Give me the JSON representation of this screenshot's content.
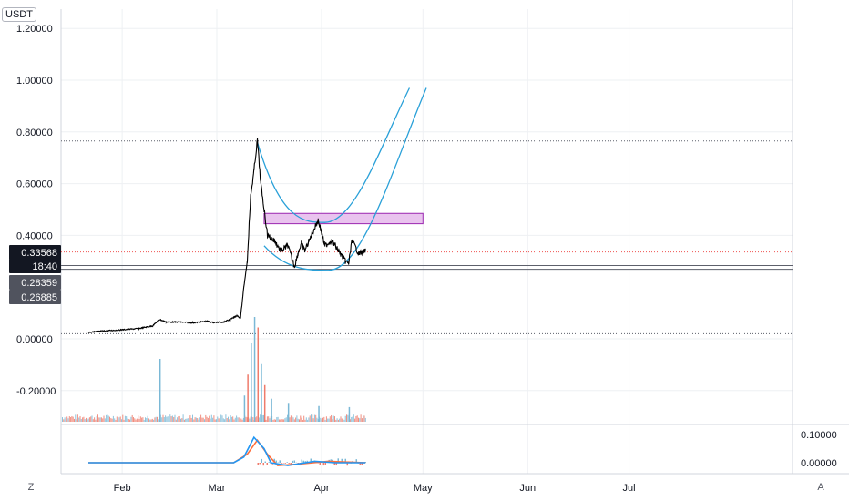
{
  "currency": "USDT",
  "buttons": {
    "zoom_label": "Z",
    "auto_label": "A"
  },
  "colors": {
    "price": "#000000",
    "curve": "#29a0d8",
    "box_fill": "#e9c3ee",
    "box_stroke": "#9c27b0",
    "vol_up": "#7ab8d6",
    "vol_down": "#ef7b6b",
    "osc_blue": "#2196f3",
    "osc_orange": "#ff6d3a",
    "badge_dark": "#131722",
    "badge_grey": "#50535e",
    "grid": "#eef0f3"
  },
  "chart_data": {
    "type": "line",
    "x_ticks": [
      "Feb",
      "Mar",
      "Apr",
      "May",
      "Jun",
      "Jul"
    ],
    "y_ticks": [
      "1.20000",
      "1.00000",
      "0.80000",
      "0.60000",
      "0.40000",
      "0.00000",
      "-0.20000"
    ],
    "ylim": [
      -0.32,
      1.25
    ],
    "price_series": [
      [
        "Jan 22",
        0.025
      ],
      [
        "Jan 26",
        0.03
      ],
      [
        "Feb 1",
        0.035
      ],
      [
        "Feb 6",
        0.04
      ],
      [
        "Feb 10",
        0.05
      ],
      [
        "Feb 12",
        0.075
      ],
      [
        "Feb 14",
        0.065
      ],
      [
        "Feb 18",
        0.065
      ],
      [
        "Feb 22",
        0.062
      ],
      [
        "Feb 26",
        0.068
      ],
      [
        "Feb 28",
        0.063
      ],
      [
        "Mar 3",
        0.065
      ],
      [
        "Mar 5",
        0.075
      ],
      [
        "Mar 7",
        0.09
      ],
      [
        "Mar 8",
        0.08
      ],
      [
        "Mar 9",
        0.2
      ],
      [
        "Mar 10",
        0.3
      ],
      [
        "Mar 11",
        0.55
      ],
      [
        "Mar 12",
        0.65
      ],
      [
        "Mar 13",
        0.77
      ],
      [
        "Mar 14",
        0.6
      ],
      [
        "Mar 15",
        0.5
      ],
      [
        "Mar 16",
        0.4
      ],
      [
        "Mar 18",
        0.38
      ],
      [
        "Mar 20",
        0.34
      ],
      [
        "Mar 22",
        0.36
      ],
      [
        "Mar 24",
        0.28
      ],
      [
        "Mar 25",
        0.33
      ],
      [
        "Mar 26",
        0.37
      ],
      [
        "Mar 27",
        0.34
      ],
      [
        "Mar 29",
        0.4
      ],
      [
        "Mar 31",
        0.46
      ],
      [
        "Apr 2",
        0.36
      ],
      [
        "Apr 4",
        0.38
      ],
      [
        "Apr 6",
        0.34
      ],
      [
        "Apr 8",
        0.3
      ],
      [
        "Apr 9",
        0.29
      ],
      [
        "Apr 10",
        0.38
      ],
      [
        "Apr 12",
        0.33
      ],
      [
        "Apr 14",
        0.34
      ]
    ],
    "cup_curves": [
      {
        "name": "",
        "start_date": "Mar 13",
        "start_price": 0.76,
        "bottom_date": "Apr 2",
        "bottom_price": 0.45,
        "end_date": "Apr 27",
        "end_price": 0.97
      },
      {
        "name": "",
        "start_date": "Mar 15",
        "start_price": 0.36,
        "bottom_date": "Apr 3",
        "bottom_price": 0.265,
        "end_date": "May 2",
        "end_price": 0.97
      }
    ],
    "resistance_box": {
      "from": "Mar 15",
      "to": "May 1",
      "top": 0.485,
      "bottom": 0.445
    },
    "horizontal_lines": [
      {
        "price": 0.765,
        "style": "dotted",
        "color": "#5d606b"
      },
      {
        "price": 0.33568,
        "style": "dotted",
        "color": "#ef5350"
      },
      {
        "price": 0.28359,
        "style": "solid",
        "color": "#5d606b"
      },
      {
        "price": 0.26885,
        "style": "solid",
        "color": "#5d606b"
      },
      {
        "price": 0.02,
        "style": "dotted",
        "color": "#5d606b"
      }
    ],
    "price_labels": [
      {
        "text": "0.33568",
        "price": 0.33568,
        "style": "dark"
      },
      {
        "text": "18:40",
        "price": 0.3,
        "style": "dark"
      },
      {
        "text": "0.28359",
        "price": 0.25,
        "style": "grey"
      },
      {
        "text": "0.26885",
        "price": 0.19,
        "style": "grey"
      }
    ],
    "volume": {
      "spikes": [
        [
          "Feb 12",
          0.6,
          "up"
        ],
        [
          "Mar 9",
          0.25,
          "up"
        ],
        [
          "Mar 10",
          0.45,
          "down"
        ],
        [
          "Mar 11",
          0.75,
          "up"
        ],
        [
          "Mar 12",
          1.0,
          "up"
        ],
        [
          "Mar 13",
          0.9,
          "down"
        ],
        [
          "Mar 14",
          0.55,
          "up"
        ],
        [
          "Mar 15",
          0.35,
          "down"
        ],
        [
          "Mar 17",
          0.22,
          "up"
        ],
        [
          "Mar 22",
          0.18,
          "up"
        ],
        [
          "Mar 31",
          0.15,
          "up"
        ],
        [
          "Apr 9",
          0.14,
          "up"
        ]
      ],
      "baseline_end": "Apr 14"
    },
    "oscillator": {
      "y_ticks": [
        "0.10000",
        "0.00000"
      ],
      "ylim": [
        -0.03,
        0.13
      ],
      "line1": [
        [
          "Jan 22",
          0.0
        ],
        [
          "Mar 6",
          0.0
        ],
        [
          "Mar 9",
          0.02
        ],
        [
          "Mar 12",
          0.09
        ],
        [
          "Mar 15",
          0.05
        ],
        [
          "Mar 17",
          0.0
        ],
        [
          "Mar 22",
          -0.01
        ],
        [
          "Mar 30",
          0.005
        ],
        [
          "Apr 5",
          0.0
        ],
        [
          "Apr 14",
          0.0
        ]
      ],
      "line2": [
        [
          "Jan 22",
          0.0
        ],
        [
          "Mar 6",
          0.0
        ],
        [
          "Mar 10",
          0.03
        ],
        [
          "Mar 13",
          0.08
        ],
        [
          "Mar 16",
          0.03
        ],
        [
          "Mar 19",
          -0.01
        ],
        [
          "Mar 25",
          -0.005
        ],
        [
          "Apr 3",
          0.005
        ],
        [
          "Apr 14",
          0.0
        ]
      ]
    }
  }
}
